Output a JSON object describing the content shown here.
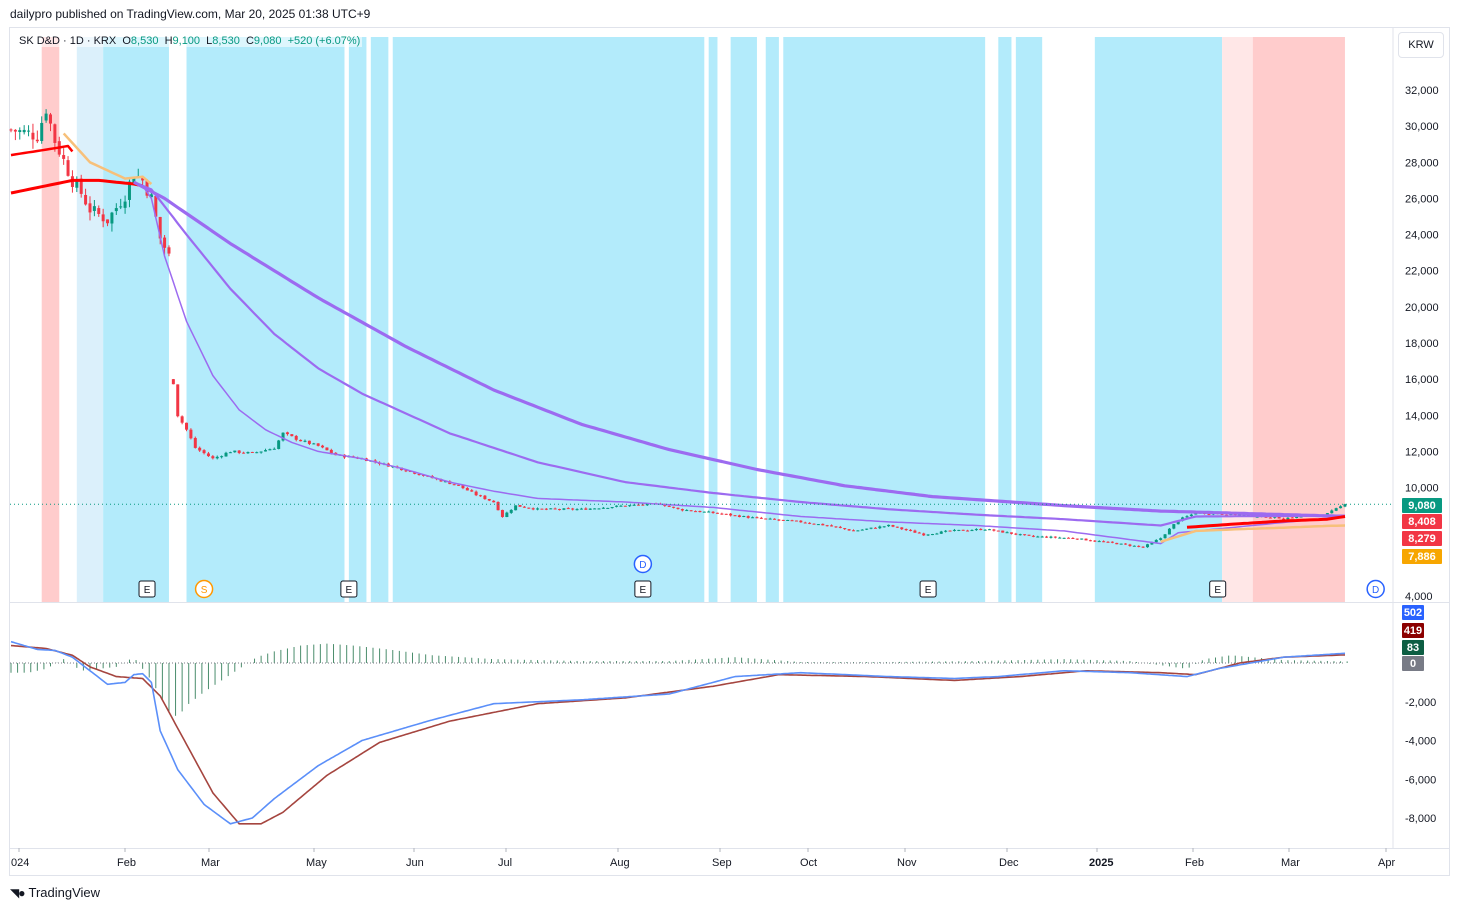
{
  "header": {
    "text": "dailypro published on TradingView.com, Mar 20, 2025 01:38 UTC+9"
  },
  "legend": {
    "symbol": "SK D&D",
    "interval": "1D",
    "exchange": "KRX",
    "o_label": "O",
    "o": "8,530",
    "h_label": "H",
    "h": "9,100",
    "l_label": "L",
    "l": "8,530",
    "c_label": "C",
    "c": "9,080",
    "change": "+520 (+6.07%)"
  },
  "currency_button": "KRW",
  "footer": {
    "brand": "TradingView"
  },
  "colors": {
    "up": "#089981",
    "down": "#f23645",
    "ema_long": "#9c6bf0",
    "ema_red": "#ff0000",
    "ema_tan": "#f7c07a",
    "macd": "#5b8ff9",
    "signal": "#a5453f",
    "hist": "#4a8d6c",
    "bg_blue": "#b3ebfb",
    "bg_red": "#ffcccc",
    "bg_pink": "#ffe7e7"
  },
  "chart_data": [
    {
      "type": "candlestick",
      "series_labels": [
        "9,080",
        "8,408",
        "8,279",
        "7,886"
      ],
      "label_colors": [
        "#089981",
        "#f23645",
        "#f23645",
        "#f7a600"
      ],
      "y_ticks": [
        "32,000",
        "30,000",
        "28,000",
        "26,000",
        "24,000",
        "22,000",
        "20,000",
        "18,000",
        "16,000",
        "14,000",
        "12,000",
        "10,000",
        "4,000"
      ],
      "ylim": [
        3800,
        33600
      ],
      "x_ticks": [
        "024",
        "Feb",
        "Mar",
        "May",
        "Jun",
        "Jul",
        "Aug",
        "Sep",
        "Oct",
        "Nov",
        "Dec",
        "2025",
        "Feb",
        "Mar",
        "Apr"
      ],
      "last_price": 9080,
      "price_path": [
        [
          0,
          29800
        ],
        [
          6,
          29500
        ],
        [
          8,
          31000
        ],
        [
          10,
          29200
        ],
        [
          14,
          27000
        ],
        [
          16,
          26300
        ],
        [
          18,
          25400
        ],
        [
          22,
          24800
        ],
        [
          26,
          26200
        ],
        [
          28,
          27400
        ],
        [
          30,
          27000
        ],
        [
          32,
          26000
        ],
        [
          34,
          23800
        ],
        [
          36,
          22800
        ],
        [
          37,
          15800
        ],
        [
          38,
          14000
        ],
        [
          40,
          13200
        ],
        [
          42,
          12200
        ],
        [
          46,
          11600
        ],
        [
          50,
          12000
        ],
        [
          55,
          11900
        ],
        [
          60,
          12200
        ],
        [
          62,
          13000
        ],
        [
          66,
          12600
        ],
        [
          70,
          12300
        ],
        [
          74,
          11800
        ],
        [
          80,
          11600
        ],
        [
          88,
          11100
        ],
        [
          95,
          10600
        ],
        [
          102,
          10100
        ],
        [
          106,
          9600
        ],
        [
          110,
          9200
        ],
        [
          112,
          8400
        ],
        [
          115,
          9000
        ],
        [
          120,
          8800
        ],
        [
          130,
          8800
        ],
        [
          140,
          9000
        ],
        [
          148,
          9100
        ],
        [
          152,
          8800
        ],
        [
          160,
          8600
        ],
        [
          170,
          8300
        ],
        [
          180,
          8100
        ],
        [
          186,
          7900
        ],
        [
          192,
          7600
        ],
        [
          200,
          7900
        ],
        [
          208,
          7400
        ],
        [
          214,
          7600
        ],
        [
          222,
          7700
        ],
        [
          232,
          7300
        ],
        [
          242,
          7200
        ],
        [
          252,
          6900
        ],
        [
          258,
          6700
        ],
        [
          262,
          7200
        ],
        [
          266,
          8200
        ],
        [
          270,
          8600
        ],
        [
          280,
          8500
        ],
        [
          290,
          8300
        ],
        [
          300,
          8550
        ],
        [
          304,
          9080
        ]
      ],
      "ema_purple_thin": [
        [
          28,
          26900
        ],
        [
          30,
          26700
        ],
        [
          32,
          26000
        ],
        [
          35,
          22800
        ],
        [
          40,
          19200
        ],
        [
          46,
          16200
        ],
        [
          52,
          14300
        ],
        [
          58,
          13200
        ],
        [
          64,
          12500
        ],
        [
          70,
          12000
        ],
        [
          80,
          11600
        ],
        [
          90,
          11000
        ],
        [
          100,
          10300
        ],
        [
          110,
          9800
        ],
        [
          120,
          9400
        ],
        [
          140,
          9200
        ],
        [
          160,
          8900
        ],
        [
          180,
          8400
        ],
        [
          200,
          8100
        ],
        [
          220,
          7900
        ],
        [
          240,
          7600
        ],
        [
          262,
          6900
        ],
        [
          266,
          7500
        ],
        [
          304,
          8400
        ]
      ],
      "ema_purple_mid": [
        [
          28,
          26900
        ],
        [
          32,
          26500
        ],
        [
          40,
          24000
        ],
        [
          50,
          21000
        ],
        [
          60,
          18500
        ],
        [
          70,
          16600
        ],
        [
          80,
          15200
        ],
        [
          100,
          13000
        ],
        [
          120,
          11400
        ],
        [
          140,
          10300
        ],
        [
          160,
          9700
        ],
        [
          180,
          9200
        ],
        [
          200,
          8800
        ],
        [
          220,
          8500
        ],
        [
          240,
          8250
        ],
        [
          262,
          7900
        ],
        [
          270,
          8400
        ],
        [
          304,
          8450
        ]
      ],
      "ema_purple_thick": [
        [
          28,
          26900
        ],
        [
          35,
          26000
        ],
        [
          50,
          23500
        ],
        [
          70,
          20500
        ],
        [
          90,
          17800
        ],
        [
          110,
          15400
        ],
        [
          130,
          13500
        ],
        [
          150,
          12100
        ],
        [
          170,
          11000
        ],
        [
          190,
          10100
        ],
        [
          210,
          9500
        ],
        [
          240,
          9000
        ],
        [
          262,
          8700
        ],
        [
          304,
          8410
        ]
      ],
      "ema_red": [
        [
          0,
          26300
        ],
        [
          10,
          26800
        ],
        [
          14,
          27000
        ],
        [
          20,
          27000
        ],
        [
          28,
          26800
        ],
        [
          30,
          26700
        ]
      ],
      "ema_red_start": [
        [
          0,
          28400
        ],
        [
          8,
          28700
        ],
        [
          13,
          28900
        ],
        [
          14,
          28600
        ]
      ],
      "ema_tan": [
        [
          12,
          29600
        ],
        [
          18,
          28000
        ],
        [
          26,
          27100
        ],
        [
          30,
          27200
        ],
        [
          32,
          26800
        ]
      ],
      "ema_red_end": [
        [
          268,
          7800
        ],
        [
          280,
          8000
        ],
        [
          290,
          8150
        ],
        [
          300,
          8250
        ],
        [
          304,
          8400
        ]
      ],
      "ema_tan_end": [
        [
          262,
          7000
        ],
        [
          270,
          7600
        ],
        [
          280,
          7700
        ],
        [
          290,
          7780
        ],
        [
          300,
          7880
        ],
        [
          304,
          7900
        ]
      ],
      "bg_bands": [
        {
          "from": 7,
          "to": 11,
          "color": "bg_red"
        },
        {
          "from": 15,
          "to": 21,
          "color": "bg_lightblue"
        },
        {
          "from": 21,
          "to": 36,
          "color": "bg_blue"
        },
        {
          "from": 40,
          "to": 76,
          "color": "bg_blue"
        },
        {
          "from": 77,
          "to": 81,
          "color": "bg_blue"
        },
        {
          "from": 82,
          "to": 86,
          "color": "bg_blue"
        },
        {
          "from": 87,
          "to": 158,
          "color": "bg_blue"
        },
        {
          "from": 159,
          "to": 161,
          "color": "bg_blue"
        },
        {
          "from": 164,
          "to": 170,
          "color": "bg_blue"
        },
        {
          "from": 172,
          "to": 175,
          "color": "bg_blue"
        },
        {
          "from": 176,
          "to": 222,
          "color": "bg_blue"
        },
        {
          "from": 225,
          "to": 228,
          "color": "bg_blue"
        },
        {
          "from": 229,
          "to": 235,
          "color": "bg_blue"
        },
        {
          "from": 247,
          "to": 276,
          "color": "bg_blue"
        },
        {
          "from": 276,
          "to": 283,
          "color": "bg_pink"
        },
        {
          "from": 283,
          "to": 304,
          "color": "bg_red"
        }
      ],
      "events": [
        {
          "x": 31,
          "label": "E",
          "kind": "earnings"
        },
        {
          "x": 44,
          "label": "S",
          "kind": "split"
        },
        {
          "x": 77,
          "label": "E",
          "kind": "earnings"
        },
        {
          "x": 144,
          "label": "E",
          "kind": "earnings"
        },
        {
          "x": 144,
          "label": "D",
          "kind": "dividend"
        },
        {
          "x": 209,
          "label": "E",
          "kind": "earnings"
        },
        {
          "x": 275,
          "label": "E",
          "kind": "earnings"
        },
        {
          "x": 311,
          "label": "D",
          "kind": "dividend"
        }
      ]
    },
    {
      "type": "macd",
      "y_ticks": [
        "-2,000",
        "-4,000",
        "-6,000",
        "-8,000"
      ],
      "ylim": [
        -8800,
        1700
      ],
      "value_labels": [
        "502",
        "419",
        "83",
        "0"
      ],
      "label_colors": [
        "#2962ff",
        "#8b0000",
        "#0d5e43",
        "#787b86"
      ],
      "macd_line": [
        [
          0,
          1100
        ],
        [
          6,
          700
        ],
        [
          10,
          650
        ],
        [
          14,
          300
        ],
        [
          18,
          -400
        ],
        [
          22,
          -1100
        ],
        [
          26,
          -1000
        ],
        [
          28,
          -600
        ],
        [
          30,
          -550
        ],
        [
          32,
          -1000
        ],
        [
          34,
          -3500
        ],
        [
          38,
          -5500
        ],
        [
          44,
          -7300
        ],
        [
          50,
          -8300
        ],
        [
          55,
          -8000
        ],
        [
          60,
          -7000
        ],
        [
          70,
          -5300
        ],
        [
          80,
          -4000
        ],
        [
          95,
          -3000
        ],
        [
          110,
          -2100
        ],
        [
          130,
          -1900
        ],
        [
          150,
          -1600
        ],
        [
          165,
          -700
        ],
        [
          180,
          -500
        ],
        [
          200,
          -700
        ],
        [
          215,
          -800
        ],
        [
          225,
          -700
        ],
        [
          240,
          -400
        ],
        [
          255,
          -500
        ],
        [
          268,
          -700
        ],
        [
          275,
          -300
        ],
        [
          290,
          300
        ],
        [
          304,
          502
        ]
      ],
      "signal_line": [
        [
          0,
          900
        ],
        [
          8,
          750
        ],
        [
          14,
          400
        ],
        [
          18,
          -200
        ],
        [
          24,
          -700
        ],
        [
          30,
          -800
        ],
        [
          34,
          -1700
        ],
        [
          40,
          -4200
        ],
        [
          46,
          -6700
        ],
        [
          52,
          -8300
        ],
        [
          57,
          -8300
        ],
        [
          62,
          -7700
        ],
        [
          72,
          -5800
        ],
        [
          84,
          -4100
        ],
        [
          100,
          -3000
        ],
        [
          120,
          -2100
        ],
        [
          140,
          -1800
        ],
        [
          160,
          -1200
        ],
        [
          175,
          -600
        ],
        [
          195,
          -700
        ],
        [
          215,
          -900
        ],
        [
          230,
          -700
        ],
        [
          245,
          -400
        ],
        [
          262,
          -500
        ],
        [
          270,
          -600
        ],
        [
          280,
          0
        ],
        [
          290,
          300
        ],
        [
          304,
          419
        ]
      ],
      "histogram": [
        [
          0,
          -500
        ],
        [
          4,
          -500
        ],
        [
          8,
          -300
        ],
        [
          12,
          200
        ],
        [
          16,
          -400
        ],
        [
          20,
          -300
        ],
        [
          24,
          -200
        ],
        [
          28,
          300
        ],
        [
          32,
          -900
        ],
        [
          34,
          -1700
        ],
        [
          36,
          -2500
        ],
        [
          38,
          -2800
        ],
        [
          40,
          -2200
        ],
        [
          44,
          -1500
        ],
        [
          48,
          -900
        ],
        [
          52,
          -300
        ],
        [
          56,
          300
        ],
        [
          60,
          600
        ],
        [
          66,
          900
        ],
        [
          72,
          1000
        ],
        [
          78,
          900
        ],
        [
          86,
          700
        ],
        [
          96,
          400
        ],
        [
          110,
          200
        ],
        [
          130,
          100
        ],
        [
          150,
          100
        ],
        [
          165,
          300
        ],
        [
          180,
          50
        ],
        [
          200,
          50
        ],
        [
          220,
          100
        ],
        [
          240,
          200
        ],
        [
          255,
          100
        ],
        [
          268,
          -300
        ],
        [
          272,
          200
        ],
        [
          278,
          400
        ],
        [
          290,
          150
        ],
        [
          304,
          83
        ]
      ]
    }
  ]
}
